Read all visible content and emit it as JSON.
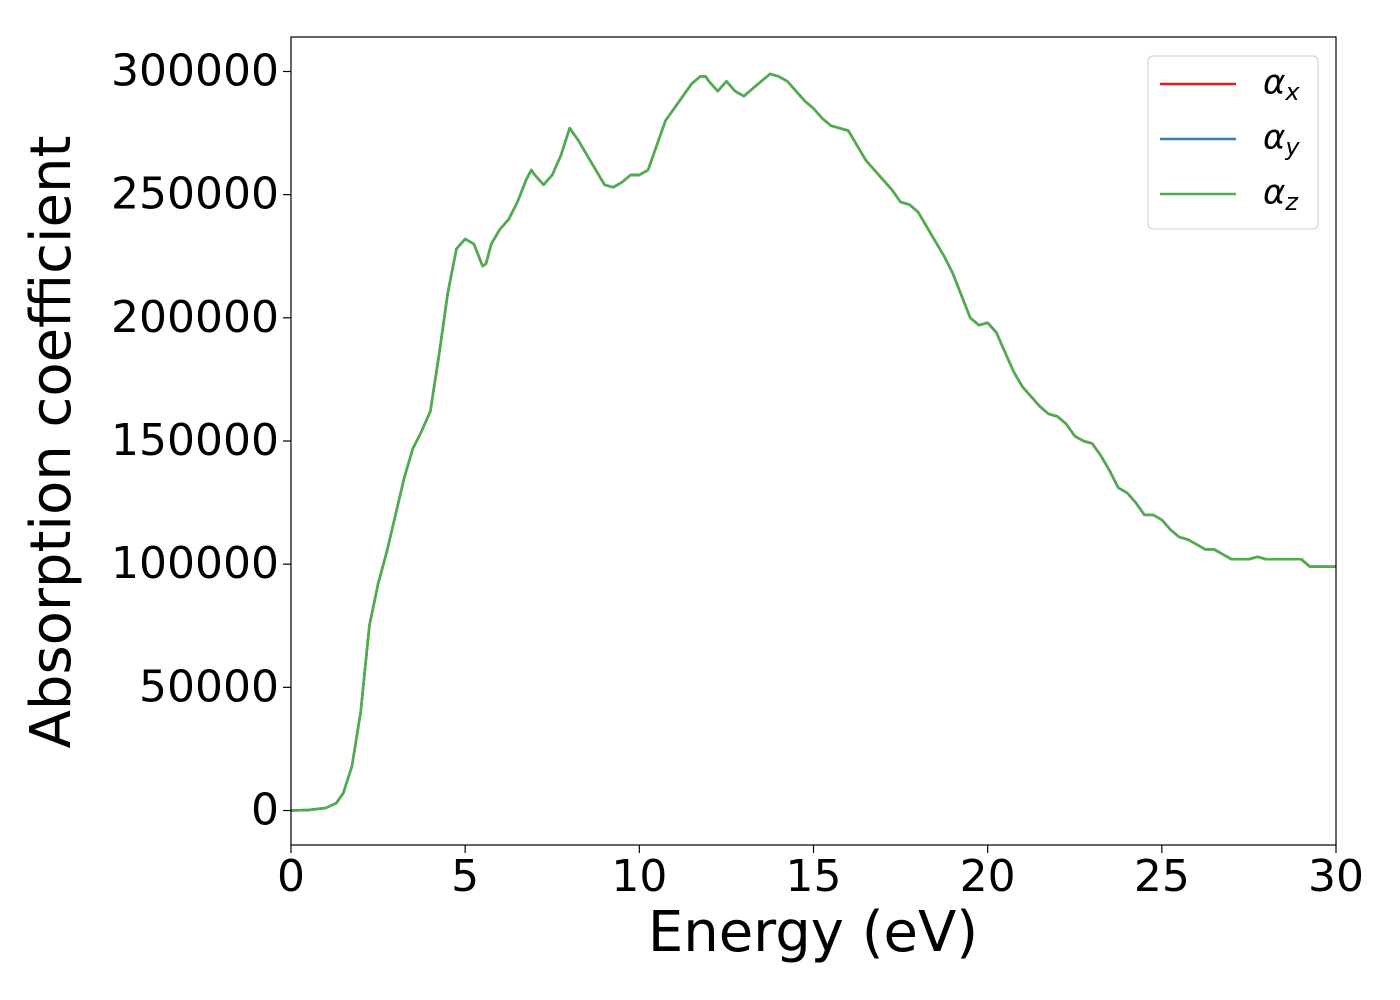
{
  "chart_data": {
    "type": "line",
    "xlabel": "Energy (eV)",
    "ylabel": "Absorption coefficient",
    "x": [
      0,
      0.5,
      1.0,
      1.3,
      1.5,
      1.75,
      2.0,
      2.25,
      2.5,
      2.75,
      3.0,
      3.25,
      3.5,
      3.75,
      4.0,
      4.25,
      4.5,
      4.75,
      5.0,
      5.25,
      5.5,
      5.6,
      5.75,
      6.0,
      6.25,
      6.5,
      6.75,
      6.9,
      7.0,
      7.25,
      7.5,
      7.75,
      8.0,
      8.25,
      8.5,
      8.75,
      9.0,
      9.25,
      9.5,
      9.75,
      10.0,
      10.25,
      10.5,
      10.75,
      11.0,
      11.25,
      11.5,
      11.75,
      11.9,
      12.0,
      12.25,
      12.5,
      12.75,
      13.0,
      13.25,
      13.5,
      13.75,
      14.0,
      14.25,
      14.5,
      14.75,
      15.0,
      15.25,
      15.5,
      15.75,
      16.0,
      16.25,
      16.5,
      16.75,
      17.0,
      17.25,
      17.5,
      17.75,
      18.0,
      18.25,
      18.5,
      18.75,
      19.0,
      19.25,
      19.5,
      19.75,
      20.0,
      20.25,
      20.5,
      20.75,
      21.0,
      21.25,
      21.5,
      21.75,
      22.0,
      22.25,
      22.5,
      22.75,
      23.0,
      23.25,
      23.5,
      23.75,
      24.0,
      24.25,
      24.5,
      24.75,
      25.0,
      25.25,
      25.5,
      25.75,
      26.0,
      26.25,
      26.5,
      26.75,
      27.0,
      27.25,
      27.5,
      27.75,
      28.0,
      28.25,
      28.5,
      28.75,
      29.0,
      29.25,
      29.5,
      30.0
    ],
    "series": [
      {
        "name": "αx",
        "color": "#e41a1c",
        "values": [
          0,
          200,
          1000,
          3000,
          7000,
          18000,
          40000,
          75000,
          92000,
          105000,
          120000,
          135000,
          147000,
          154000,
          162000,
          185000,
          210000,
          228000,
          232000,
          230000,
          221000,
          222000,
          230000,
          236000,
          240000,
          247000,
          256000,
          260000,
          258000,
          254000,
          258000,
          266000,
          277000,
          272000,
          266000,
          260000,
          254000,
          253000,
          255000,
          258000,
          258000,
          260000,
          270000,
          280000,
          285000,
          290000,
          295000,
          298000,
          298000,
          296000,
          292000,
          296000,
          292000,
          290000,
          293000,
          296000,
          299000,
          298000,
          296000,
          292000,
          288000,
          285000,
          281000,
          278000,
          277000,
          276000,
          270000,
          264000,
          260000,
          256000,
          252000,
          247000,
          246000,
          243000,
          237000,
          231000,
          225000,
          218000,
          209000,
          200000,
          197000,
          198000,
          194000,
          186000,
          178000,
          172000,
          168000,
          164000,
          161000,
          160000,
          157000,
          152000,
          150000,
          149000,
          144000,
          138000,
          131000,
          129000,
          125000,
          120000,
          120000,
          118000,
          114000,
          111000,
          110000,
          108000,
          106000,
          106000,
          104000,
          102000,
          102000,
          102000,
          103000,
          102000,
          102000,
          102000,
          102000,
          102000,
          99000,
          99000,
          99000
        ]
      },
      {
        "name": "αy",
        "color": "#377eb8",
        "values": [
          0,
          200,
          1000,
          3000,
          7000,
          18000,
          40000,
          75000,
          92000,
          105000,
          120000,
          135000,
          147000,
          154000,
          162000,
          185000,
          210000,
          228000,
          232000,
          230000,
          221000,
          222000,
          230000,
          236000,
          240000,
          247000,
          256000,
          260000,
          258000,
          254000,
          258000,
          266000,
          277000,
          272000,
          266000,
          260000,
          254000,
          253000,
          255000,
          258000,
          258000,
          260000,
          270000,
          280000,
          285000,
          290000,
          295000,
          298000,
          298000,
          296000,
          292000,
          296000,
          292000,
          290000,
          293000,
          296000,
          299000,
          298000,
          296000,
          292000,
          288000,
          285000,
          281000,
          278000,
          277000,
          276000,
          270000,
          264000,
          260000,
          256000,
          252000,
          247000,
          246000,
          243000,
          237000,
          231000,
          225000,
          218000,
          209000,
          200000,
          197000,
          198000,
          194000,
          186000,
          178000,
          172000,
          168000,
          164000,
          161000,
          160000,
          157000,
          152000,
          150000,
          149000,
          144000,
          138000,
          131000,
          129000,
          125000,
          120000,
          120000,
          118000,
          114000,
          111000,
          110000,
          108000,
          106000,
          106000,
          104000,
          102000,
          102000,
          102000,
          103000,
          102000,
          102000,
          102000,
          102000,
          102000,
          99000,
          99000,
          99000
        ]
      },
      {
        "name": "αz",
        "color": "#4daf4a",
        "values": [
          0,
          200,
          1000,
          3000,
          7000,
          18000,
          40000,
          75000,
          92000,
          105000,
          120000,
          135000,
          147000,
          154000,
          162000,
          185000,
          210000,
          228000,
          232000,
          230000,
          221000,
          222000,
          230000,
          236000,
          240000,
          247000,
          256000,
          260000,
          258000,
          254000,
          258000,
          266000,
          277000,
          272000,
          266000,
          260000,
          254000,
          253000,
          255000,
          258000,
          258000,
          260000,
          270000,
          280000,
          285000,
          290000,
          295000,
          298000,
          298000,
          296000,
          292000,
          296000,
          292000,
          290000,
          293000,
          296000,
          299000,
          298000,
          296000,
          292000,
          288000,
          285000,
          281000,
          278000,
          277000,
          276000,
          270000,
          264000,
          260000,
          256000,
          252000,
          247000,
          246000,
          243000,
          237000,
          231000,
          225000,
          218000,
          209000,
          200000,
          197000,
          198000,
          194000,
          186000,
          178000,
          172000,
          168000,
          164000,
          161000,
          160000,
          157000,
          152000,
          150000,
          149000,
          144000,
          138000,
          131000,
          129000,
          125000,
          120000,
          120000,
          118000,
          114000,
          111000,
          110000,
          108000,
          106000,
          106000,
          104000,
          102000,
          102000,
          102000,
          103000,
          102000,
          102000,
          102000,
          102000,
          102000,
          99000,
          99000,
          99000
        ]
      }
    ],
    "xlim": [
      0,
      30
    ],
    "xticks": [
      0,
      5,
      10,
      15,
      20,
      25,
      30
    ],
    "ylim": [
      -14000,
      314000
    ],
    "yticks": [
      0,
      50000,
      100000,
      150000,
      200000,
      250000,
      300000
    ],
    "grid": false,
    "legend": "upper right"
  }
}
